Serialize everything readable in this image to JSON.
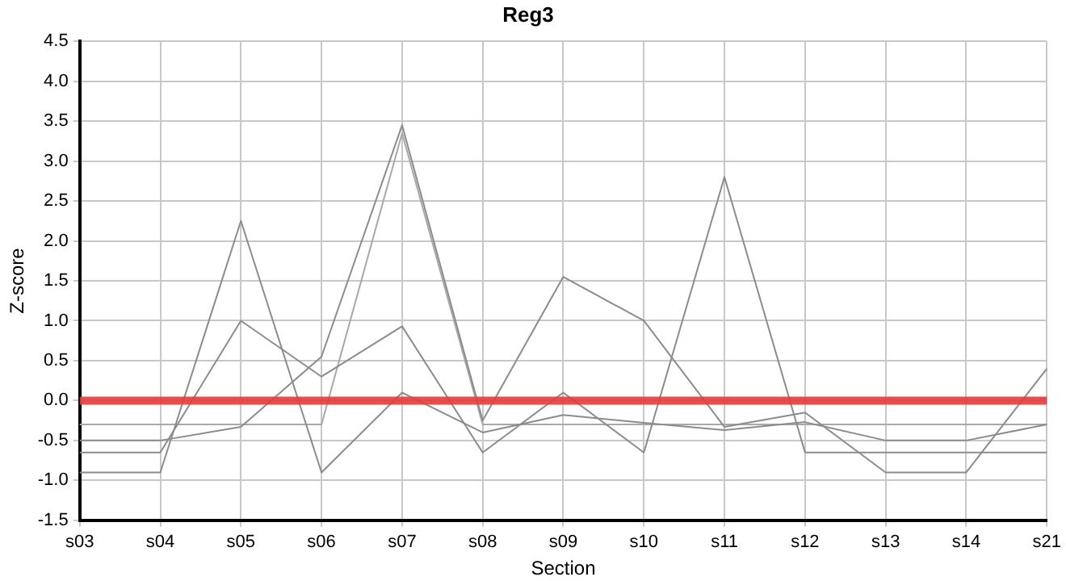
{
  "chart_data": {
    "type": "line",
    "title": "Reg3",
    "xlabel": "Section",
    "ylabel": "Z-score",
    "categories": [
      "s03",
      "s04",
      "s05",
      "s06",
      "s07",
      "s08",
      "s09",
      "s10",
      "s11",
      "s12",
      "s13",
      "s14",
      "s21"
    ],
    "series": [
      {
        "color": "#8c8c8c",
        "values": [
          -0.5,
          -0.5,
          -0.33,
          0.55,
          3.45,
          -0.25,
          1.55,
          1.0,
          -0.33,
          -0.15,
          -0.9,
          -0.9,
          0.4
        ]
      },
      {
        "color": "#8c8c8c",
        "values": [
          -0.9,
          -0.9,
          2.25,
          -0.9,
          0.1,
          -0.4,
          -0.18,
          -0.28,
          -0.37,
          -0.27,
          -0.5,
          -0.5,
          -0.3
        ]
      },
      {
        "color": "#8c8c8c",
        "values": [
          -0.65,
          -0.65,
          1.0,
          0.3,
          0.93,
          -0.65,
          0.1,
          -0.65,
          2.8,
          -0.65,
          -0.65,
          -0.65,
          -0.65
        ]
      },
      {
        "color": "#a8a8a8",
        "values": [
          -0.3,
          -0.3,
          -0.3,
          -0.3,
          3.35,
          -0.3,
          -0.3,
          -0.3,
          -0.3,
          -0.3,
          -0.3,
          -0.3,
          -0.3
        ]
      }
    ],
    "ylim": [
      -1.5,
      4.5
    ],
    "yticks": [
      -1.5,
      {
        "value": -1,
        "label": "-1.0"
      },
      -0.5,
      {
        "value": 0,
        "label": "0.0"
      },
      0.5,
      {
        "value": 1,
        "label": "1.0"
      },
      1.5,
      {
        "value": 2,
        "label": "2.0"
      },
      2.5,
      {
        "value": 3,
        "label": "3.0"
      },
      3.5,
      {
        "value": 4,
        "label": "4.0"
      },
      4.5
    ],
    "ref_lines": [
      {
        "axis": "y",
        "value": 0,
        "color": "#e83a3a"
      }
    ],
    "grid": true,
    "legend": false,
    "marker": "none",
    "line_style": "solid"
  }
}
